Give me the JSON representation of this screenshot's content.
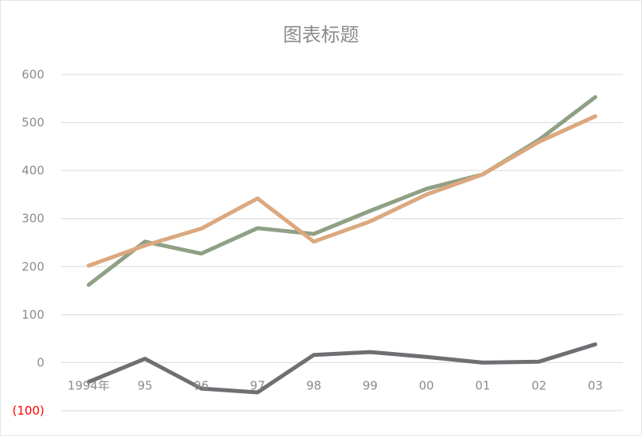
{
  "chart_data": {
    "type": "line",
    "title": "图表标题",
    "categories": [
      "1994年",
      "95",
      "96",
      "97",
      "98",
      "99",
      "00",
      "01",
      "02",
      "03"
    ],
    "y_ticks": [
      {
        "value": 600,
        "label": "600"
      },
      {
        "value": 500,
        "label": "500"
      },
      {
        "value": 400,
        "label": "400"
      },
      {
        "value": 300,
        "label": "300"
      },
      {
        "value": 200,
        "label": "200"
      },
      {
        "value": 100,
        "label": "100"
      },
      {
        "value": 0,
        "label": "0"
      },
      {
        "value": -100,
        "label": "(100)",
        "color": "#ff0000"
      }
    ],
    "ylim": [
      -100,
      600
    ],
    "grid": true,
    "legend": "none",
    "series": [
      {
        "color": "#8fa085",
        "values": [
          162,
          252,
          227,
          280,
          268,
          316,
          362,
          392,
          464,
          553
        ]
      },
      {
        "color": "#dba87f",
        "values": [
          202,
          244,
          279,
          342,
          252,
          294,
          350,
          392,
          460,
          513
        ]
      },
      {
        "color": "#6d6f72",
        "values": [
          -40,
          8,
          -54,
          -62,
          16,
          22,
          12,
          0,
          2,
          38
        ]
      }
    ]
  }
}
